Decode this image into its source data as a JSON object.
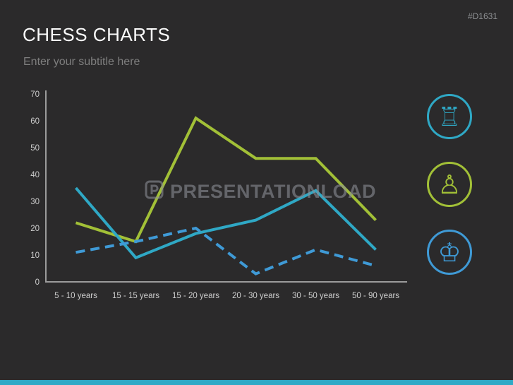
{
  "slide": {
    "title": "CHESS CHARTS",
    "subtitle": "Enter your subtitle here",
    "ref_code": "#D1631",
    "watermark": "PRESENTATIONLOAD"
  },
  "colors": {
    "background": "#2b2a2b",
    "axis": "#9b9b9b",
    "tick_text": "#cdcdcd",
    "title_text": "#fbfbfb",
    "subtitle_text": "#7e7e7e",
    "green": "#a2c037",
    "teal": "#2fa8c5",
    "blue": "#3f9ad6",
    "bottom_bar": "#2fa9c6"
  },
  "chart_data": {
    "type": "line",
    "title": "",
    "xlabel": "",
    "ylabel": "",
    "categories": [
      "5 - 10 years",
      "15 - 15 years",
      "15 - 20 years",
      "20 - 30 years",
      "30 - 50 years",
      "50 - 90 years"
    ],
    "series": [
      {
        "name": "green-solid",
        "color": "#a2c037",
        "style": "solid",
        "values": [
          22,
          15,
          61,
          46,
          46,
          23
        ]
      },
      {
        "name": "teal-solid",
        "color": "#2fa8c5",
        "style": "solid",
        "values": [
          35,
          9,
          18,
          23,
          34,
          12
        ]
      },
      {
        "name": "blue-dashed",
        "color": "#3f9ad6",
        "style": "dashed",
        "values": [
          11,
          15,
          20,
          3,
          12,
          6
        ]
      }
    ],
    "ylim": [
      0,
      70
    ],
    "yticks": [
      0,
      10,
      20,
      30,
      40,
      50,
      60,
      70
    ],
    "grid": false,
    "legend": "none"
  },
  "icons": [
    {
      "name": "rook",
      "glyph": "♖",
      "color": "#2fa8c5"
    },
    {
      "name": "pawn",
      "glyph": "♙",
      "color": "#a2c037"
    },
    {
      "name": "king",
      "glyph": "♔",
      "color": "#3f9ad6"
    }
  ]
}
